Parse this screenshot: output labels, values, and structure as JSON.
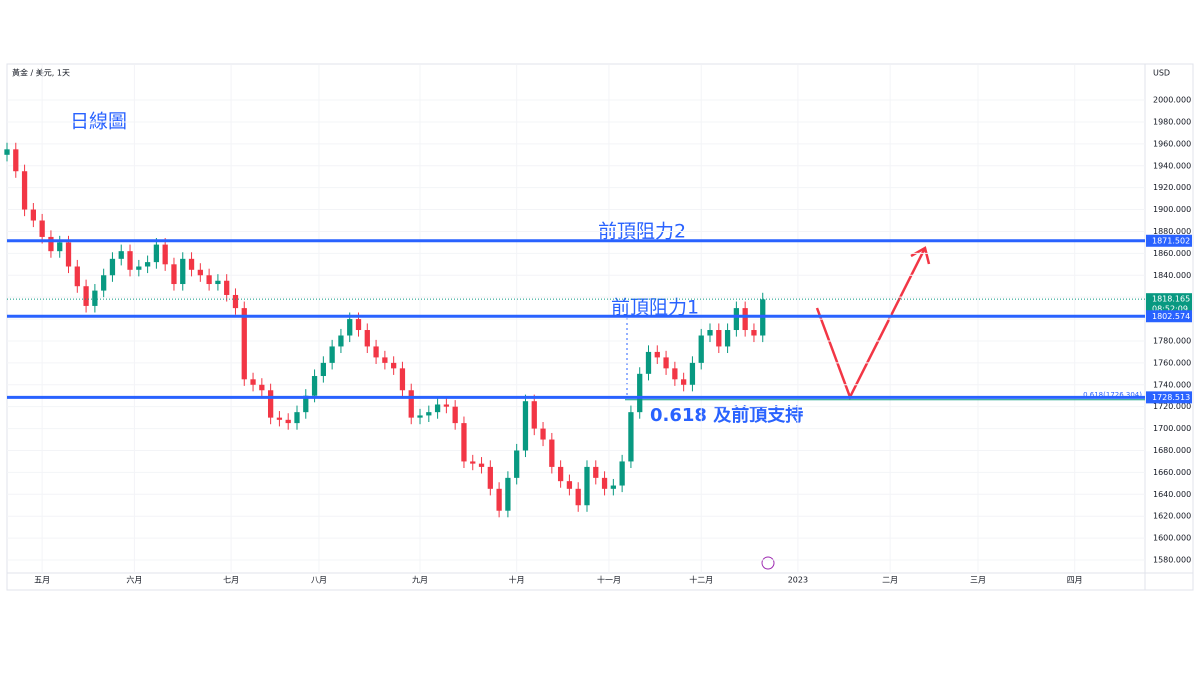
{
  "chart_data": {
    "type": "candlestick",
    "title": "黃金 / 美元, 1天",
    "y_unit": "USD",
    "annotations": [
      "日線圖",
      "前頂阻力2",
      "前頂阻力1",
      "0.618 及前頂支持"
    ],
    "up_color": "#089981",
    "down_color": "#f23645",
    "xlim": [
      0,
      259
    ],
    "xticks": [
      {
        "value": 8,
        "label": "五月"
      },
      {
        "value": 29,
        "label": "六月"
      },
      {
        "value": 51,
        "label": "七月"
      },
      {
        "value": 71,
        "label": "八月"
      },
      {
        "value": 94,
        "label": "九月"
      },
      {
        "value": 116,
        "label": "十月"
      },
      {
        "value": 137,
        "label": "十一月"
      },
      {
        "value": 158,
        "label": "十二月"
      },
      {
        "value": 180,
        "label": "2023"
      },
      {
        "value": 201,
        "label": "二月"
      },
      {
        "value": 221,
        "label": "三月"
      },
      {
        "value": 243,
        "label": "四月"
      }
    ],
    "ylim": [
      1566.3,
      2032
    ],
    "yticks": [
      {
        "value": 1580,
        "label": "1580.000"
      },
      {
        "value": 1600,
        "label": "1600.000"
      },
      {
        "value": 1620,
        "label": "1620.000"
      },
      {
        "value": 1640,
        "label": "1640.000"
      },
      {
        "value": 1660,
        "label": "1660.000"
      },
      {
        "value": 1680,
        "label": "1680.000"
      },
      {
        "value": 1700,
        "label": "1700.000"
      },
      {
        "value": 1720,
        "label": "1720.000"
      },
      {
        "value": 1740,
        "label": "1740.000"
      },
      {
        "value": 1760,
        "label": "1760.000"
      },
      {
        "value": 1780,
        "label": "1780.000"
      },
      {
        "value": 1800,
        "label": "1800.000"
      },
      {
        "value": 1820,
        "label": "1820.000"
      },
      {
        "value": 1840,
        "label": "1840.000"
      },
      {
        "value": 1860,
        "label": "1860.000"
      },
      {
        "value": 1880,
        "label": "1880.000"
      },
      {
        "value": 1900,
        "label": "1900.000"
      },
      {
        "value": 1920,
        "label": "1920.000"
      },
      {
        "value": 1940,
        "label": "1940.000"
      },
      {
        "value": 1960,
        "label": "1960.000"
      },
      {
        "value": 1980,
        "label": "1980.000"
      },
      {
        "value": 2000,
        "label": "2000.000"
      }
    ],
    "x": [
      0,
      2,
      4,
      6,
      8,
      10,
      12,
      14,
      16,
      18,
      20,
      22,
      24,
      26,
      28,
      30,
      32,
      34,
      36,
      38,
      40,
      42,
      44,
      46,
      48,
      50,
      52,
      54,
      56,
      58,
      60,
      62,
      64,
      66,
      68,
      70,
      72,
      74,
      76,
      78,
      80,
      82,
      84,
      86,
      88,
      90,
      92,
      94,
      96,
      98,
      100,
      102,
      104,
      106,
      108,
      110,
      112,
      114,
      116,
      118,
      120,
      122,
      124,
      126,
      128,
      130,
      132,
      134,
      136,
      138,
      140,
      142,
      144,
      146,
      148,
      150,
      152,
      154,
      156,
      158,
      160,
      162,
      164,
      166,
      168,
      170,
      172
    ],
    "open": [
      1950,
      1955,
      1935,
      1900,
      1890,
      1875,
      1862,
      1870,
      1848,
      1830,
      1812,
      1826,
      1840,
      1855,
      1862,
      1845,
      1848,
      1852,
      1868,
      1850,
      1832,
      1855,
      1845,
      1840,
      1832,
      1835,
      1822,
      1810,
      1745,
      1740,
      1735,
      1710,
      1708,
      1705,
      1715,
      1730,
      1748,
      1760,
      1775,
      1785,
      1800,
      1790,
      1775,
      1765,
      1760,
      1755,
      1735,
      1710,
      1712,
      1715,
      1722,
      1720,
      1705,
      1670,
      1668,
      1665,
      1645,
      1625,
      1655,
      1680,
      1725,
      1700,
      1690,
      1665,
      1652,
      1645,
      1630,
      1665,
      1655,
      1645,
      1648,
      1670,
      1715,
      1750,
      1770,
      1765,
      1755,
      1745,
      1740,
      1760,
      1785,
      1790,
      1775,
      1790,
      1810,
      1790,
      1785
    ],
    "high": [
      1961,
      1961,
      1941,
      1906,
      1896,
      1881,
      1876,
      1876,
      1854,
      1836,
      1832,
      1846,
      1861,
      1868,
      1868,
      1854,
      1858,
      1874,
      1874,
      1856,
      1861,
      1861,
      1851,
      1846,
      1841,
      1841,
      1828,
      1816,
      1751,
      1746,
      1741,
      1716,
      1714,
      1721,
      1736,
      1754,
      1766,
      1781,
      1791,
      1806,
      1806,
      1796,
      1781,
      1771,
      1766,
      1761,
      1741,
      1718,
      1721,
      1728,
      1728,
      1726,
      1711,
      1676,
      1674,
      1671,
      1651,
      1661,
      1686,
      1731,
      1731,
      1706,
      1696,
      1671,
      1658,
      1651,
      1671,
      1671,
      1661,
      1654,
      1676,
      1721,
      1756,
      1776,
      1776,
      1771,
      1761,
      1751,
      1766,
      1791,
      1796,
      1796,
      1796,
      1816,
      1816,
      1796,
      1824
    ],
    "low": [
      1944,
      1929,
      1894,
      1884,
      1869,
      1856,
      1856,
      1842,
      1824,
      1806,
      1806,
      1820,
      1834,
      1849,
      1839,
      1839,
      1842,
      1846,
      1844,
      1826,
      1826,
      1839,
      1834,
      1826,
      1826,
      1816,
      1804,
      1739,
      1734,
      1729,
      1704,
      1702,
      1699,
      1699,
      1709,
      1724,
      1742,
      1754,
      1769,
      1779,
      1784,
      1769,
      1759,
      1754,
      1749,
      1729,
      1704,
      1704,
      1706,
      1709,
      1714,
      1699,
      1664,
      1662,
      1659,
      1639,
      1619,
      1619,
      1649,
      1674,
      1694,
      1684,
      1659,
      1646,
      1639,
      1624,
      1624,
      1649,
      1639,
      1639,
      1642,
      1664,
      1709,
      1744,
      1759,
      1749,
      1739,
      1734,
      1734,
      1754,
      1779,
      1769,
      1769,
      1784,
      1784,
      1779,
      1779
    ],
    "close": [
      1955,
      1935,
      1900,
      1890,
      1875,
      1862,
      1870,
      1848,
      1830,
      1812,
      1826,
      1840,
      1855,
      1862,
      1845,
      1848,
      1852,
      1868,
      1850,
      1832,
      1855,
      1845,
      1840,
      1832,
      1835,
      1822,
      1810,
      1745,
      1740,
      1735,
      1710,
      1708,
      1705,
      1715,
      1730,
      1748,
      1760,
      1775,
      1785,
      1800,
      1790,
      1775,
      1765,
      1760,
      1755,
      1735,
      1710,
      1712,
      1715,
      1722,
      1720,
      1705,
      1670,
      1668,
      1665,
      1645,
      1625,
      1655,
      1680,
      1725,
      1700,
      1690,
      1665,
      1652,
      1645,
      1630,
      1665,
      1655,
      1645,
      1648,
      1670,
      1715,
      1750,
      1770,
      1765,
      1755,
      1745,
      1740,
      1760,
      1785,
      1790,
      1775,
      1790,
      1810,
      1790,
      1785,
      1818
    ],
    "levels": [
      {
        "value": 1871.502,
        "color": "#2962ff"
      },
      {
        "value": 1802.574,
        "color": "#2962ff"
      },
      {
        "value": 1728.513,
        "color": "#2962ff"
      }
    ],
    "fib": {
      "value": 1726.304,
      "label": "0.618(1726.304)",
      "color": "#089981"
    },
    "last_price": {
      "value": 1818.165,
      "countdown": "08:52:09",
      "color": "#089981"
    }
  }
}
